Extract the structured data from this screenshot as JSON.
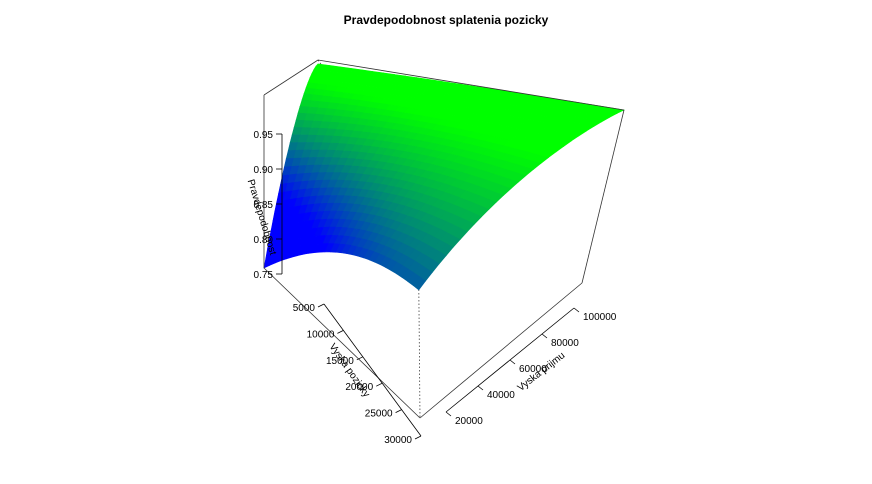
{
  "chart_data": {
    "type": "surface3d",
    "title": "Pravdepodobnost splatenia pozicky",
    "zlabel": "Pravdepodobnost",
    "ylabel": "Vyska pozicky",
    "xlabel": "Vyska prijmu",
    "x_ticks": [
      "20000",
      "40000",
      "60000",
      "80000",
      "100000"
    ],
    "y_ticks": [
      "5000",
      "10000",
      "15000",
      "20000",
      "25000",
      "30000"
    ],
    "z_ticks": [
      "0.75",
      "0.80",
      "0.85",
      "0.90",
      "0.95"
    ],
    "xlim": [
      10000,
      100000
    ],
    "ylim": [
      1000,
      30000
    ],
    "zlim": [
      0.72,
      0.99
    ],
    "color_low": "#0000ff",
    "color_high": "#00ff00",
    "surface_corners": {
      "low_income_small_loan": 0.985,
      "high_income_small_loan": 0.99,
      "high_income_large_loan": 0.88,
      "low_income_large_loan": 0.72
    }
  }
}
